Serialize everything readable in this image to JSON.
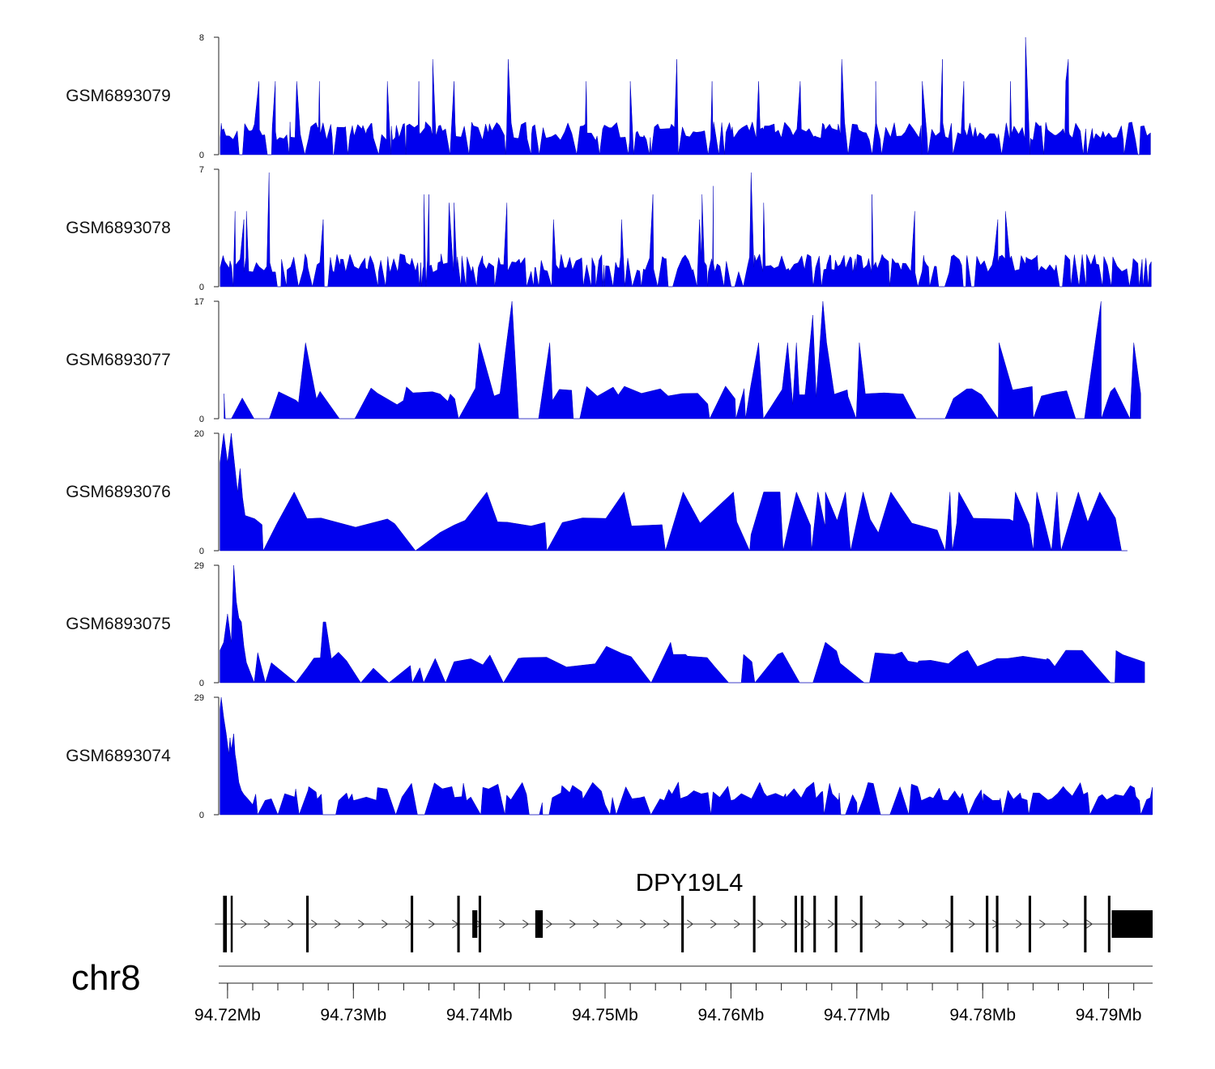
{
  "chart_data": {
    "type": "area",
    "title": "",
    "xlabel": "",
    "ylabel": "",
    "chromosome": "chr8",
    "x_range_mb": [
      94.7193,
      94.7935
    ],
    "x_ticks": [
      {
        "value": 94.72,
        "label": "94.72Mb"
      },
      {
        "value": 94.73,
        "label": "94.73Mb"
      },
      {
        "value": 94.74,
        "label": "94.74Mb"
      },
      {
        "value": 94.75,
        "label": "94.75Mb"
      },
      {
        "value": 94.76,
        "label": "94.76Mb"
      },
      {
        "value": 94.77,
        "label": "94.77Mb"
      },
      {
        "value": 94.78,
        "label": "94.78Mb"
      },
      {
        "value": 94.79,
        "label": "94.79Mb"
      }
    ],
    "minor_tick_step_mb": 0.002,
    "fill_color": "#0000ee",
    "series": [
      {
        "name": "GSM6893079",
        "ymin": 0,
        "ymax": 8,
        "ymin_label": "0",
        "ymax_label": "8",
        "gap_max": 0.6,
        "base_p": 0.45,
        "floor_p": 0.15,
        "seed": 11,
        "head": [],
        "peaks": [
          [
            94.7225,
            5
          ],
          [
            94.7238,
            5
          ],
          [
            94.7255,
            5
          ],
          [
            94.7273,
            5
          ],
          [
            94.7327,
            5
          ],
          [
            94.7352,
            5
          ],
          [
            94.7363,
            6.5
          ],
          [
            94.738,
            5
          ],
          [
            94.7423,
            6.5
          ],
          [
            94.7485,
            5
          ],
          [
            94.752,
            5
          ],
          [
            94.7557,
            6.5
          ],
          [
            94.7585,
            5
          ],
          [
            94.7622,
            5
          ],
          [
            94.7655,
            5
          ],
          [
            94.7688,
            6.5
          ],
          [
            94.7715,
            5
          ],
          [
            94.7752,
            5
          ],
          [
            94.7768,
            6.5
          ],
          [
            94.7785,
            5
          ],
          [
            94.7822,
            5
          ],
          [
            94.7834,
            8
          ],
          [
            94.7866,
            5
          ],
          [
            94.7868,
            6.5
          ]
        ]
      },
      {
        "name": "GSM6893078",
        "ymin": 0,
        "ymax": 7,
        "ymin_label": "0",
        "ymax_label": "7",
        "gap_max": 0.55,
        "base_p": 0.5,
        "floor_p": 0.14,
        "seed": 23,
        "head": [],
        "peaks": [
          [
            94.7206,
            4.5
          ],
          [
            94.7213,
            4
          ],
          [
            94.7215,
            4.5
          ],
          [
            94.7233,
            6.8
          ],
          [
            94.7276,
            4
          ],
          [
            94.7356,
            5.5
          ],
          [
            94.736,
            5.5
          ],
          [
            94.7376,
            5
          ],
          [
            94.738,
            5
          ],
          [
            94.7422,
            5
          ],
          [
            94.7459,
            4
          ],
          [
            94.7513,
            4
          ],
          [
            94.7538,
            5.5
          ],
          [
            94.7575,
            4
          ],
          [
            94.7577,
            5.5
          ],
          [
            94.7586,
            6
          ],
          [
            94.7616,
            6.8
          ],
          [
            94.7626,
            5
          ],
          [
            94.7712,
            5.5
          ],
          [
            94.7746,
            4.5
          ],
          [
            94.7812,
            4
          ],
          [
            94.7818,
            4.5
          ]
        ]
      },
      {
        "name": "GSM6893077",
        "ymin": 0,
        "ymax": 17,
        "ymin_label": "0",
        "ymax_label": "17",
        "gap_max": 2.4,
        "base_p": 0.18,
        "floor_p": 0.3,
        "seed": 37,
        "head": [],
        "peaks": [
          [
            94.7262,
            11
          ],
          [
            94.74,
            11
          ],
          [
            94.7426,
            17
          ],
          [
            94.7456,
            11
          ],
          [
            94.7622,
            11
          ],
          [
            94.7645,
            11
          ],
          [
            94.7652,
            11
          ],
          [
            94.7665,
            15
          ],
          [
            94.7673,
            17
          ],
          [
            94.7676,
            11
          ],
          [
            94.7702,
            11
          ],
          [
            94.7813,
            11
          ],
          [
            94.7894,
            17
          ],
          [
            94.792,
            11
          ]
        ]
      },
      {
        "name": "GSM6893076",
        "ymin": 0,
        "ymax": 20,
        "ymin_label": "0",
        "ymax_label": "20",
        "gap_max": 4.5,
        "base_p": 0.15,
        "floor_p": 0.3,
        "seed": 41,
        "head": [
          [
            94.7194,
            15
          ],
          [
            94.7197,
            20
          ],
          [
            94.72,
            15
          ],
          [
            94.7203,
            20
          ],
          [
            94.7205,
            16
          ],
          [
            94.7208,
            10
          ],
          [
            94.721,
            14
          ],
          [
            94.7212,
            9
          ],
          [
            94.7214,
            6
          ]
        ],
        "peaks": [
          [
            94.7253,
            10
          ],
          [
            94.7406,
            10
          ],
          [
            94.7515,
            10
          ],
          [
            94.7562,
            10
          ],
          [
            94.7602,
            10
          ],
          [
            94.7626,
            10
          ],
          [
            94.7639,
            10
          ],
          [
            94.7652,
            10
          ],
          [
            94.7669,
            10
          ],
          [
            94.7675,
            10
          ],
          [
            94.7691,
            10
          ],
          [
            94.7705,
            10
          ],
          [
            94.7727,
            10
          ],
          [
            94.7774,
            10
          ],
          [
            94.7781,
            10
          ],
          [
            94.7826,
            10
          ],
          [
            94.7843,
            10
          ],
          [
            94.7859,
            10
          ],
          [
            94.7876,
            10
          ],
          [
            94.7893,
            10
          ]
        ]
      },
      {
        "name": "GSM6893075",
        "ymin": 0,
        "ymax": 29,
        "ymin_label": "0",
        "ymax_label": "29",
        "gap_max": 3.5,
        "base_p": 0.3,
        "floor_p": 0.3,
        "seed": 53,
        "head": [
          [
            94.7194,
            8
          ],
          [
            94.7197,
            10
          ],
          [
            94.72,
            17
          ],
          [
            94.7203,
            10
          ],
          [
            94.7205,
            29
          ],
          [
            94.7207,
            20
          ],
          [
            94.7209,
            16
          ],
          [
            94.7211,
            15
          ],
          [
            94.7213,
            9
          ],
          [
            94.7215,
            5
          ]
        ],
        "peaks": [
          [
            94.7276,
            15
          ],
          [
            94.7278,
            15
          ],
          [
            94.7365,
            6
          ],
          [
            94.7431,
            6
          ],
          [
            94.7501,
            9
          ],
          [
            94.7552,
            10
          ],
          [
            94.7564,
            7
          ],
          [
            94.761,
            7
          ],
          [
            94.7637,
            7
          ],
          [
            94.7675,
            10
          ],
          [
            94.773,
            7
          ],
          [
            94.7788,
            8
          ],
          [
            94.782,
            6
          ],
          [
            94.7851,
            6
          ],
          [
            94.7866,
            8
          ]
        ]
      },
      {
        "name": "GSM6893074",
        "ymin": 0,
        "ymax": 29,
        "ymin_label": "0",
        "ymax_label": "29",
        "gap_max": 1.2,
        "base_p": 0.55,
        "floor_p": 0.15,
        "seed": 67,
        "head": [
          [
            94.7194,
            26
          ],
          [
            94.7195,
            29
          ],
          [
            94.7197,
            24
          ],
          [
            94.7199,
            20
          ],
          [
            94.7201,
            15
          ],
          [
            94.7202,
            19
          ],
          [
            94.7203,
            16
          ],
          [
            94.7205,
            20
          ],
          [
            94.7206,
            15
          ],
          [
            94.7207,
            13
          ],
          [
            94.7209,
            8
          ],
          [
            94.7211,
            6
          ],
          [
            94.7213,
            5
          ],
          [
            94.7216,
            4
          ],
          [
            94.722,
            2.5
          ]
        ],
        "peaks": [
          [
            94.73,
            3.5
          ],
          [
            94.739,
            3.5
          ],
          [
            94.745,
            3
          ],
          [
            94.75,
            2.5
          ],
          [
            94.76,
            3.5
          ],
          [
            94.77,
            3
          ],
          [
            94.7782,
            4
          ],
          [
            94.78,
            3
          ],
          [
            94.7855,
            4
          ],
          [
            94.7864,
            7
          ],
          [
            94.788,
            5
          ],
          [
            94.7895,
            5
          ],
          [
            94.7905,
            5
          ]
        ]
      }
    ],
    "gene": {
      "name": "DPY19L4",
      "strand": "+",
      "tx_start": 94.719,
      "tx_end": 94.7935,
      "exons": [
        [
          94.71965,
          94.71995
        ],
        [
          94.72025,
          94.72035
        ],
        [
          94.72625,
          94.72645
        ],
        [
          94.73455,
          94.73475
        ],
        [
          94.73825,
          94.73845
        ],
        [
          94.73945,
          94.73985
        ],
        [
          94.73995,
          94.74015
        ],
        [
          94.74445,
          94.74505
        ],
        [
          94.75605,
          94.75625
        ],
        [
          94.76175,
          94.76195
        ],
        [
          94.76505,
          94.76525
        ],
        [
          94.76555,
          94.76575
        ],
        [
          94.76655,
          94.76675
        ],
        [
          94.76825,
          94.76845
        ],
        [
          94.77025,
          94.77045
        ],
        [
          94.77745,
          94.77765
        ],
        [
          94.78025,
          94.78045
        ],
        [
          94.78105,
          94.78125
        ],
        [
          94.78365,
          94.78385
        ],
        [
          94.78805,
          94.78825
        ],
        [
          94.78995,
          94.79015
        ],
        [
          94.79025,
          94.7935
        ]
      ]
    }
  }
}
